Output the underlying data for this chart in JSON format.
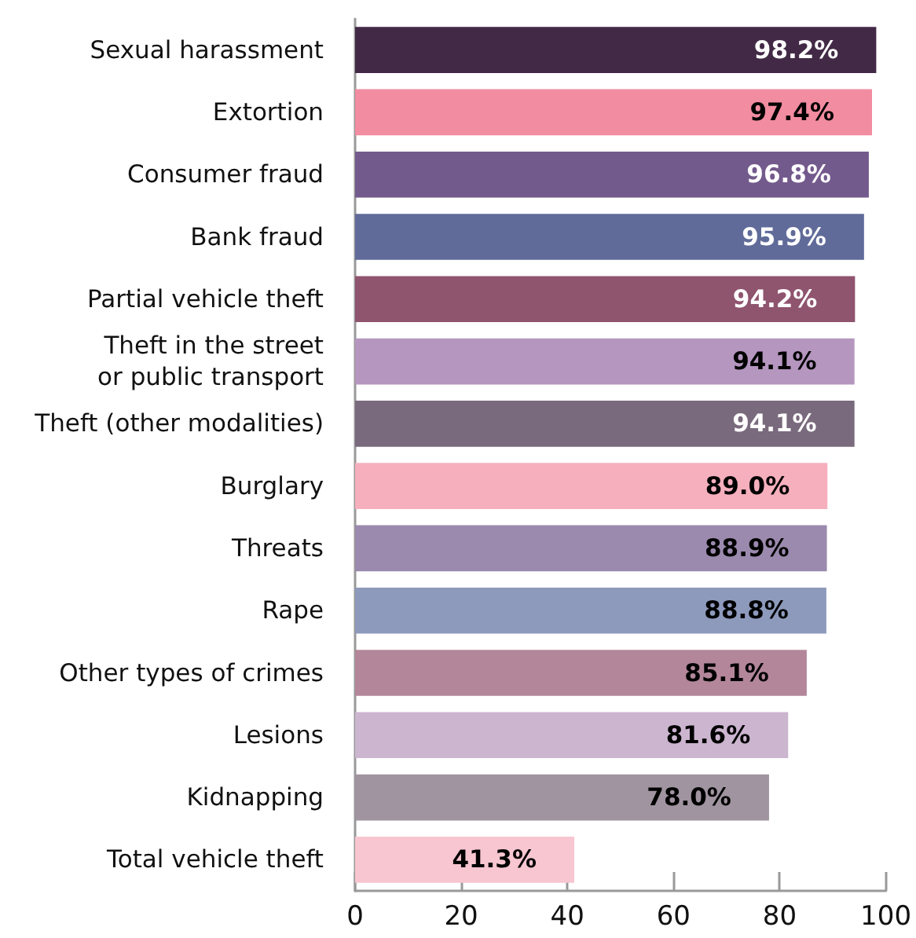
{
  "chart_data": {
    "type": "bar",
    "orientation": "horizontal",
    "categories": [
      "Sexual harassment",
      "Extortion",
      "Consumer fraud",
      "Bank fraud",
      "Partial vehicle theft",
      "Theft in the street\nor public transport",
      "Theft (other modalities)",
      "Burglary",
      "Threats",
      "Rape",
      "Other types of crimes",
      "Lesions",
      "Kidnapping",
      "Total vehicle theft"
    ],
    "values": [
      98.2,
      97.4,
      96.8,
      95.9,
      94.2,
      94.1,
      94.1,
      89.0,
      88.9,
      88.8,
      85.1,
      81.6,
      78.0,
      41.3
    ],
    "value_labels": [
      "98.2%",
      "97.4%",
      "96.8%",
      "95.9%",
      "94.2%",
      "94.1%",
      "94.1%",
      "89.0%",
      "88.9%",
      "88.8%",
      "85.1%",
      "81.6%",
      "78.0%",
      "41.3%"
    ],
    "colors": [
      "#422a46",
      "#f28ca0",
      "#735a8c",
      "#606b99",
      "#8f546e",
      "#b596bf",
      "#7a6a7d",
      "#f6afbd",
      "#9b8aae",
      "#8e9abc",
      "#b3869a",
      "#cbb5cf",
      "#9f949f",
      "#f7c6d1"
    ],
    "xlim": [
      0,
      100
    ],
    "xticks": [
      0,
      20,
      40,
      60,
      80,
      100
    ],
    "grid": false
  }
}
